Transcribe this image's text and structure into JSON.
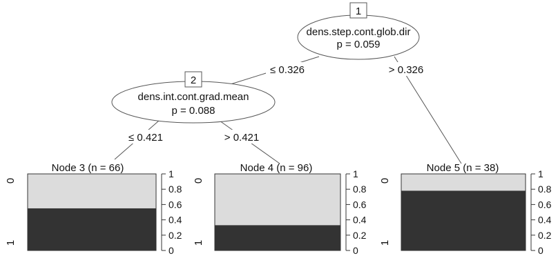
{
  "inner_nodes": [
    {
      "id": "1",
      "variable": "dens.step.cont.glob.dir",
      "p": "p = 0.059"
    },
    {
      "id": "2",
      "variable": "dens.int.cont.grad.mean",
      "p": "p = 0.088"
    }
  ],
  "edges": [
    {
      "label": "≤ 0.326"
    },
    {
      "label": "> 0.326"
    },
    {
      "label": "≤ 0.421"
    },
    {
      "label": "> 0.421"
    }
  ],
  "terminal_nodes": [
    {
      "title": "Node 3 (n = 66)",
      "fraction_class_1": 0.55
    },
    {
      "title": "Node 4 (n = 96)",
      "fraction_class_1": 0.33
    },
    {
      "title": "Node 5 (n = 38)",
      "fraction_class_1": 0.78
    }
  ],
  "y_axis_ticks": [
    "1",
    "0.8",
    "0.6",
    "0.4",
    "0.2",
    "0"
  ],
  "class_labels": [
    "0",
    "1"
  ],
  "colors": {
    "light": "#dcdcdc",
    "dark": "#333333",
    "line": "#555555"
  }
}
